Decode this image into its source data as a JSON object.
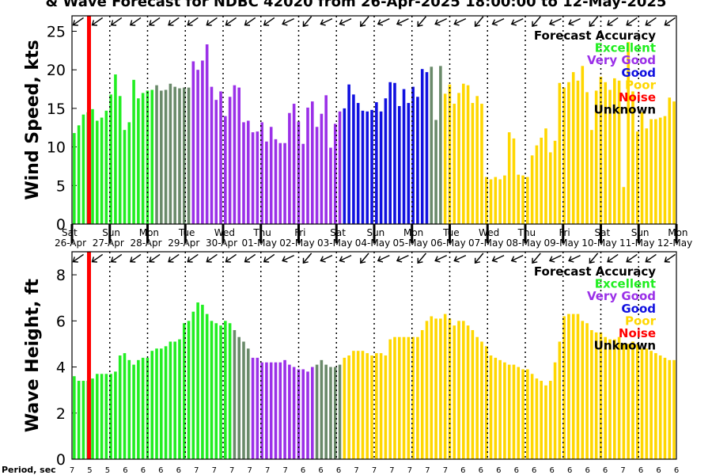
{
  "title": "& Wave Forecast for NDBC 42020 from 26-Apr-2025 18:00:00 to 12-May-2025",
  "period_label": "Period, sec",
  "legend": {
    "title": "Forecast Accuracy",
    "items": [
      {
        "label": "Excellent",
        "color": "#22ee22"
      },
      {
        "label": "Very Good",
        "color": "#9b30e8"
      },
      {
        "label": "Good",
        "color": "#1010e0"
      },
      {
        "label": "Poor",
        "color": "#ffd700"
      },
      {
        "label": "Noise",
        "color": "#ff0000"
      },
      {
        "label": "Unknown",
        "color": "#000000"
      }
    ]
  },
  "days": [
    {
      "weekday": "Sat",
      "date": "26-Apr"
    },
    {
      "weekday": "Sun",
      "date": "27-Apr"
    },
    {
      "weekday": "Mon",
      "date": "28-Apr"
    },
    {
      "weekday": "Tue",
      "date": "29-Apr"
    },
    {
      "weekday": "Wed",
      "date": "30-Apr"
    },
    {
      "weekday": "Thu",
      "date": "01-May"
    },
    {
      "weekday": "Fri",
      "date": "02-May"
    },
    {
      "weekday": "Sat",
      "date": "03-May"
    },
    {
      "weekday": "Sun",
      "date": "04-May"
    },
    {
      "weekday": "Mon",
      "date": "05-May"
    },
    {
      "weekday": "Tue",
      "date": "06-May"
    },
    {
      "weekday": "Wed",
      "date": "07-May"
    },
    {
      "weekday": "Thu",
      "date": "08-May"
    },
    {
      "weekday": "Fri",
      "date": "09-May"
    },
    {
      "weekday": "Sat",
      "date": "10-May"
    },
    {
      "weekday": "Sun",
      "date": "11-May"
    },
    {
      "weekday": "Mon",
      "date": "12-May"
    }
  ],
  "periods": [
    "7",
    "5",
    "5",
    "6",
    "6",
    "6",
    "6",
    "7",
    "7",
    "7",
    "7",
    "7",
    "7",
    "6",
    "6",
    "6",
    "7",
    "7",
    "7",
    "7",
    "7",
    "7",
    "6",
    "6",
    "6",
    "6",
    "6",
    "6",
    "6",
    "6",
    "6",
    "7",
    "6",
    "6",
    "6"
  ],
  "colors": {
    "excellent": "#22ee22",
    "transition": "#6a8a6a",
    "very_good": "#9b30e8",
    "good": "#1010e0",
    "poor": "#ffd700",
    "noise": "#ff0000"
  },
  "chart_data": [
    {
      "type": "bar",
      "ylabel": "Wind Speed, kts",
      "ylim": [
        0,
        27
      ],
      "yticks": [
        0,
        5,
        10,
        15,
        20,
        25
      ],
      "values": [
        11.8,
        12.8,
        14.2,
        14.5,
        14.9,
        13.4,
        13.8,
        14.7,
        16.8,
        19.4,
        16.6,
        12.2,
        13.2,
        18.7,
        16.3,
        17.0,
        17.3,
        17.4,
        18.0,
        17.3,
        17.4,
        18.2,
        17.8,
        17.6,
        17.7,
        17.7,
        21.1,
        20.0,
        21.2,
        23.3,
        17.8,
        16.1,
        17.2,
        14.0,
        16.5,
        18.0,
        17.7,
        13.2,
        13.4,
        11.9,
        12.0,
        13.2,
        10.7,
        12.6,
        11.0,
        10.5,
        10.5,
        14.4,
        15.6,
        13.3,
        10.4,
        15.1,
        15.9,
        12.6,
        14.3,
        16.7,
        9.9,
        13.0,
        14.6,
        15.0,
        18.1,
        16.8,
        15.7,
        14.7,
        14.6,
        14.8,
        15.8,
        14.6,
        16.3,
        18.4,
        18.3,
        15.3,
        17.5,
        15.7,
        17.8,
        16.5,
        20.1,
        19.7,
        20.4,
        13.5,
        20.5,
        16.9,
        18.1,
        15.6,
        17.0,
        18.2,
        18.0,
        15.7,
        16.6,
        15.6,
        6.1,
        5.8,
        6.1,
        5.8,
        6.3,
        11.9,
        11.1,
        6.4,
        6.3,
        6.1,
        8.9,
        10.2,
        11.2,
        12.4,
        9.3,
        10.8,
        18.3,
        17.7,
        18.4,
        19.7,
        18.6,
        20.5,
        17.1,
        12.2,
        17.3,
        19.1,
        18.4,
        17.4,
        18.9,
        18.6,
        4.8,
        23.6,
        17.2,
        12.0,
        14.5,
        12.4,
        13.6,
        13.6,
        13.8,
        14.0,
        16.4,
        15.9
      ],
      "noise_x": 0.45
    },
    {
      "type": "bar",
      "ylabel": "Wave Height, ft",
      "ylim": [
        0,
        9
      ],
      "yticks": [
        0,
        2,
        4,
        6,
        8
      ],
      "values": [
        3.6,
        3.4,
        3.4,
        3.4,
        3.5,
        3.7,
        3.7,
        3.7,
        3.7,
        3.8,
        4.5,
        4.6,
        4.3,
        4.1,
        4.3,
        4.4,
        4.4,
        4.7,
        4.8,
        4.8,
        4.9,
        5.1,
        5.1,
        5.2,
        5.9,
        6.0,
        6.4,
        6.8,
        6.7,
        6.3,
        6.0,
        5.9,
        5.8,
        6.0,
        5.9,
        5.6,
        5.3,
        5.1,
        4.8,
        4.4,
        4.4,
        4.2,
        4.2,
        4.2,
        4.2,
        4.2,
        4.3,
        4.1,
        4.0,
        3.9,
        3.9,
        3.8,
        4.0,
        4.1,
        4.3,
        4.1,
        4.0,
        4.0,
        4.1,
        4.4,
        4.5,
        4.7,
        4.7,
        4.7,
        4.6,
        4.5,
        4.6,
        4.6,
        4.5,
        5.2,
        5.3,
        5.3,
        5.3,
        5.3,
        5.3,
        5.3,
        5.6,
        6.0,
        6.2,
        6.1,
        6.1,
        6.3,
        6.1,
        5.8,
        6.0,
        6.0,
        5.8,
        5.6,
        5.3,
        5.1,
        4.9,
        4.5,
        4.4,
        4.3,
        4.2,
        4.1,
        4.1,
        4.0,
        3.9,
        3.9,
        3.7,
        3.5,
        3.4,
        3.2,
        3.4,
        4.2,
        5.1,
        6.2,
        6.3,
        6.3,
        6.3,
        6.0,
        5.9,
        5.6,
        5.5,
        5.5,
        5.3,
        5.2,
        5.2,
        5.3,
        5.0,
        5.0,
        5.1,
        5.0,
        4.8,
        4.8,
        4.7,
        4.6,
        4.5,
        4.4,
        4.3,
        4.3
      ],
      "noise_x": 0.45
    }
  ]
}
